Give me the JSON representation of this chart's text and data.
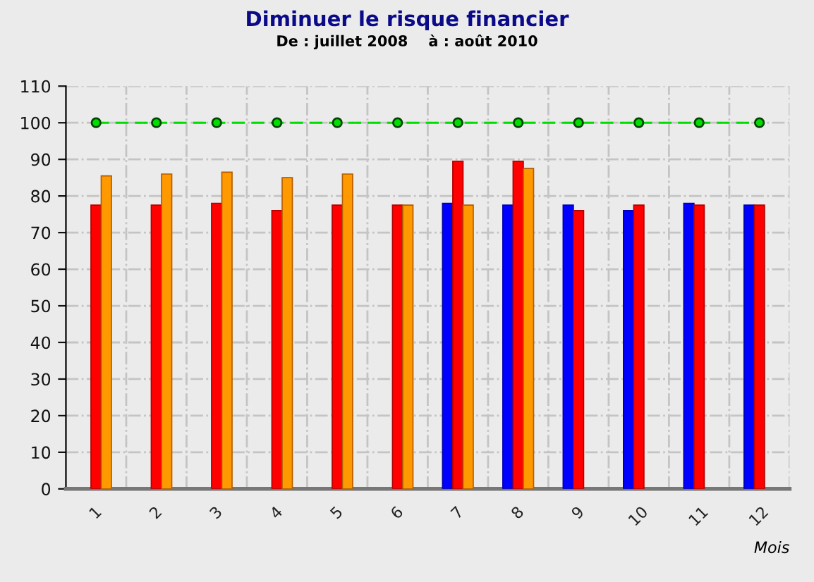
{
  "chart_data": {
    "type": "bar",
    "title": "Diminuer le risque financier",
    "subtitle": "De : juillet 2008    à : août 2010",
    "xlabel": "Mois",
    "categories": [
      "1",
      "2",
      "3",
      "4",
      "5",
      "6",
      "7",
      "8",
      "9",
      "10",
      "11",
      "12"
    ],
    "series": [
      {
        "color": "#0000ff",
        "values": [
          null,
          null,
          null,
          null,
          null,
          null,
          78,
          77.5,
          77.5,
          76,
          78,
          77.5
        ]
      },
      {
        "color": "#ff0000",
        "values": [
          77.5,
          77.5,
          78,
          76,
          77.5,
          77.5,
          89.5,
          89.5,
          76,
          77.5,
          77.5,
          77.5
        ]
      },
      {
        "color": "#ff9900",
        "values": [
          85.5,
          86,
          86.5,
          85,
          86,
          77.5,
          77.5,
          87.5,
          null,
          null,
          null,
          null
        ]
      },
      {
        "type": "line",
        "color": "#00dd00",
        "values": [
          100,
          100,
          100,
          100,
          100,
          100,
          100,
          100,
          100,
          100,
          100,
          100
        ],
        "marker": "circle",
        "line_style": "dashed"
      }
    ],
    "ylim": [
      0,
      110
    ],
    "yticks": [
      0,
      10,
      20,
      30,
      40,
      50,
      60,
      70,
      80,
      90,
      100,
      110
    ],
    "grid": true,
    "legend": false
  }
}
